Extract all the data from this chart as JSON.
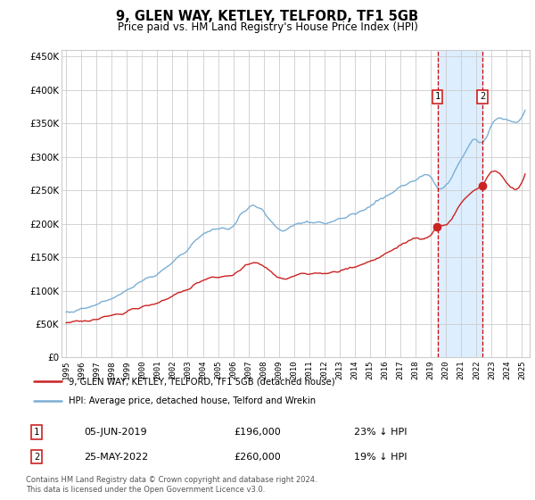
{
  "title": "9, GLEN WAY, KETLEY, TELFORD, TF1 5GB",
  "subtitle": "Price paid vs. HM Land Registry's House Price Index (HPI)",
  "hpi_label": "HPI: Average price, detached house, Telford and Wrekin",
  "price_label": "9, GLEN WAY, KETLEY, TELFORD, TF1 5GB (detached house)",
  "footer": "Contains HM Land Registry data © Crown copyright and database right 2024.\nThis data is licensed under the Open Government Licence v3.0.",
  "sale1_date": "05-JUN-2019",
  "sale1_price": 196000,
  "sale1_note": "23% ↓ HPI",
  "sale2_date": "25-MAY-2022",
  "sale2_price": 260000,
  "sale2_note": "19% ↓ HPI",
  "sale1_x": 2019.43,
  "sale2_x": 2022.4,
  "sale1_hpi_y": 196000,
  "sale2_price_y": 260000,
  "hpi_color": "#7bafd4",
  "price_color": "#cc2222",
  "shade_color": "#ddeeff",
  "vline_color": "#cc0000",
  "ylim": [
    0,
    460000
  ],
  "yticks": [
    0,
    50000,
    100000,
    150000,
    200000,
    250000,
    300000,
    350000,
    400000,
    450000
  ],
  "xlim_start": 1995.0,
  "xlim_end": 2025.5,
  "num1_x": 2019.43,
  "num1_y": 390000,
  "num2_x": 2022.4,
  "num2_y": 390000,
  "background_color": "#ffffff",
  "grid_color": "#cccccc"
}
